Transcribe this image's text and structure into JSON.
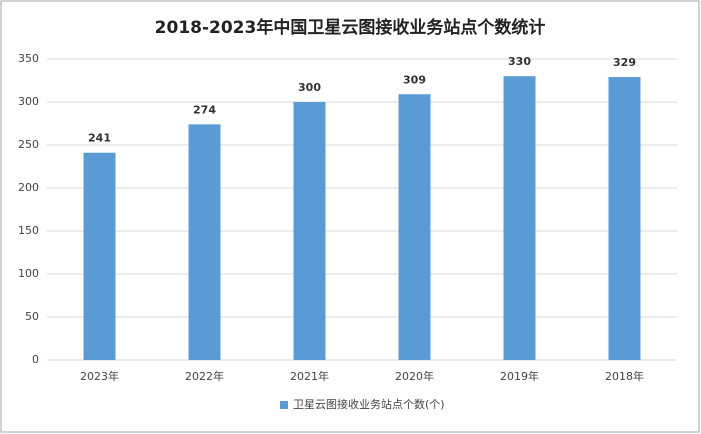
{
  "chart_data": {
    "type": "bar",
    "title": "2018-2023年中国卫星云图接收业务站点个数统计",
    "categories": [
      "2023年",
      "2022年",
      "2021年",
      "2020年",
      "2019年",
      "2018年"
    ],
    "series": [
      {
        "name": "卫星云图接收业务站点个数(个)",
        "color": "#5b9bd5",
        "values": [
          241,
          274,
          300,
          309,
          330,
          329
        ]
      }
    ],
    "ylim": [
      0,
      350
    ],
    "yticks": [
      0,
      50,
      100,
      150,
      200,
      250,
      300,
      350
    ],
    "grid": true,
    "legend": "bottom",
    "data_labels": true
  }
}
